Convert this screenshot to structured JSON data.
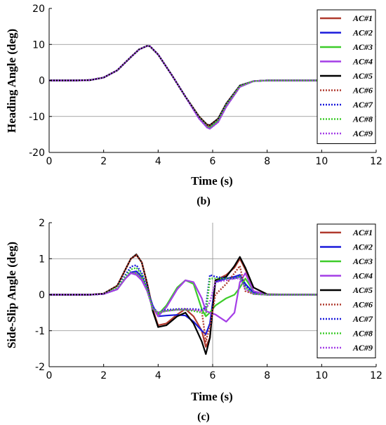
{
  "chart_data": [
    {
      "type": "line",
      "caption": "(b)",
      "xlabel": "Time (s)",
      "ylabel": "Heading Angle (deg)",
      "xlim": [
        0,
        12
      ],
      "ylim": [
        -20,
        20
      ],
      "xticks": [
        0,
        2,
        4,
        6,
        8,
        10,
        12
      ],
      "yticks": [
        -20,
        -10,
        0,
        10,
        20
      ],
      "grid_y_values": [
        -10,
        10
      ],
      "legend_placement": "top-right",
      "series": [
        {
          "name": "AC#1",
          "color": "#b03a2e",
          "dash": "solid",
          "x": [
            0,
            1,
            1.5,
            2,
            2.5,
            3,
            3.3,
            3.6,
            3.7,
            4,
            4.5,
            5,
            5.5,
            5.8,
            5.9,
            6.2,
            6.5,
            7,
            7.5,
            8,
            10
          ],
          "y": [
            0,
            0,
            0.1,
            0.8,
            2.8,
            6.5,
            8.6,
            9.6,
            9.5,
            7.2,
            1.5,
            -4.5,
            -10,
            -12.5,
            -12.6,
            -10.8,
            -6.5,
            -1.5,
            -0.2,
            0,
            0
          ]
        },
        {
          "name": "AC#2",
          "color": "#1a1adb",
          "dash": "solid",
          "x": [
            0,
            1,
            1.5,
            2,
            2.5,
            3,
            3.3,
            3.6,
            3.7,
            4,
            4.5,
            5,
            5.5,
            5.8,
            5.9,
            6.2,
            6.5,
            7,
            7.5,
            8,
            10
          ],
          "y": [
            0,
            0,
            0.1,
            0.8,
            2.8,
            6.5,
            8.6,
            9.6,
            9.5,
            7.2,
            1.5,
            -4.5,
            -10.3,
            -12.9,
            -13.0,
            -11.0,
            -6.7,
            -1.5,
            -0.2,
            0,
            0
          ]
        },
        {
          "name": "AC#3",
          "color": "#3dcc2a",
          "dash": "solid",
          "x": [
            0,
            1,
            1.5,
            2,
            2.5,
            3,
            3.3,
            3.6,
            3.7,
            4,
            4.5,
            5,
            5.5,
            5.8,
            5.9,
            6.2,
            6.5,
            7,
            7.5,
            8,
            10
          ],
          "y": [
            0,
            0,
            0.1,
            0.8,
            2.8,
            6.5,
            8.6,
            9.6,
            9.5,
            7.2,
            1.5,
            -4.5,
            -10.3,
            -12.9,
            -13.1,
            -11.1,
            -6.8,
            -1.6,
            -0.2,
            0,
            0
          ]
        },
        {
          "name": "AC#4",
          "color": "#a43ee6",
          "dash": "solid",
          "x": [
            0,
            1,
            1.5,
            2,
            2.5,
            3,
            3.3,
            3.6,
            3.7,
            4,
            4.5,
            5,
            5.5,
            5.8,
            5.9,
            6.2,
            6.5,
            7,
            7.5,
            8,
            10
          ],
          "y": [
            0,
            0,
            0.1,
            0.8,
            2.8,
            6.5,
            8.6,
            9.6,
            9.5,
            7.2,
            1.5,
            -4.5,
            -10.6,
            -13.1,
            -13.4,
            -11.6,
            -7.3,
            -1.8,
            -0.2,
            0,
            0
          ]
        },
        {
          "name": "AC#5",
          "color": "#000000",
          "dash": "solid",
          "x": [
            0,
            1,
            1.5,
            2,
            2.5,
            3,
            3.3,
            3.6,
            3.7,
            4,
            4.5,
            5,
            5.5,
            5.8,
            5.9,
            6.2,
            6.5,
            7,
            7.5,
            8,
            10
          ],
          "y": [
            0,
            0,
            0.1,
            0.8,
            2.8,
            6.5,
            8.6,
            9.6,
            9.5,
            7.2,
            1.5,
            -4.5,
            -10,
            -12.3,
            -12.4,
            -10.6,
            -6.4,
            -1.4,
            -0.2,
            0,
            0
          ]
        },
        {
          "name": "AC#6",
          "color": "#b03a2e",
          "dash": "dot",
          "x": [
            0,
            1,
            1.5,
            2,
            2.5,
            3,
            3.3,
            3.6,
            3.7,
            4,
            4.5,
            5,
            5.5,
            5.8,
            5.9,
            6.2,
            6.5,
            7,
            7.5,
            8,
            10
          ],
          "y": [
            0,
            0,
            0.1,
            0.8,
            2.8,
            6.5,
            8.6,
            9.6,
            9.5,
            7.2,
            1.5,
            -4.5,
            -10,
            -12.5,
            -12.6,
            -10.8,
            -6.5,
            -1.5,
            -0.2,
            0,
            0
          ]
        },
        {
          "name": "AC#7",
          "color": "#1a1adb",
          "dash": "dot",
          "x": [
            0,
            1,
            1.5,
            2,
            2.5,
            3,
            3.3,
            3.6,
            3.7,
            4,
            4.5,
            5,
            5.5,
            5.8,
            5.9,
            6.2,
            6.5,
            7,
            7.5,
            8,
            10
          ],
          "y": [
            0,
            0,
            0.1,
            0.8,
            2.8,
            6.5,
            8.6,
            9.6,
            9.5,
            7.2,
            1.5,
            -4.5,
            -10.3,
            -12.9,
            -13.0,
            -11.0,
            -6.7,
            -1.5,
            -0.2,
            0,
            0
          ]
        },
        {
          "name": "AC#8",
          "color": "#3dcc2a",
          "dash": "dot",
          "x": [
            0,
            1,
            1.5,
            2,
            2.5,
            3,
            3.3,
            3.6,
            3.7,
            4,
            4.5,
            5,
            5.5,
            5.8,
            5.9,
            6.2,
            6.5,
            7,
            7.5,
            8,
            10
          ],
          "y": [
            0,
            0,
            0.1,
            0.8,
            2.8,
            6.5,
            8.6,
            9.6,
            9.5,
            7.2,
            1.5,
            -4.5,
            -10.3,
            -12.9,
            -13.1,
            -11.1,
            -6.8,
            -1.6,
            -0.2,
            0,
            0
          ]
        },
        {
          "name": "AC#9",
          "color": "#a43ee6",
          "dash": "dot",
          "x": [
            0,
            1,
            1.5,
            2,
            2.5,
            3,
            3.3,
            3.6,
            3.7,
            4,
            4.5,
            5,
            5.5,
            5.8,
            5.9,
            6.2,
            6.5,
            7,
            7.5,
            8,
            10
          ],
          "y": [
            0,
            0,
            0.1,
            0.8,
            2.8,
            6.5,
            8.6,
            9.6,
            9.5,
            7.2,
            1.5,
            -4.5,
            -10.6,
            -13.1,
            -13.4,
            -11.6,
            -7.3,
            -1.8,
            -0.2,
            0,
            0
          ]
        }
      ]
    },
    {
      "type": "line",
      "caption": "(c)",
      "xlabel": "Time (s)",
      "ylabel": "Side-Slip Angle (deg)",
      "xlim": [
        0,
        12
      ],
      "ylim": [
        -2,
        2
      ],
      "xticks": [
        0,
        2,
        4,
        6,
        8,
        10,
        12
      ],
      "yticks": [
        -2,
        -1,
        0,
        1,
        2
      ],
      "grid_y_values": [
        -1,
        1
      ],
      "grid_x_values": [
        6
      ],
      "legend_placement": "top-right",
      "series": [
        {
          "name": "AC#1",
          "color": "#b03a2e",
          "dash": "solid",
          "x": [
            0,
            1.5,
            2,
            2.5,
            2.8,
            3.0,
            3.2,
            3.4,
            3.6,
            3.8,
            4.0,
            4.3,
            4.7,
            5.0,
            5.3,
            5.6,
            5.75,
            5.9,
            6.1,
            6.5,
            6.8,
            7.0,
            7.2,
            7.5,
            8,
            10
          ],
          "y": [
            0,
            0,
            0.03,
            0.25,
            0.7,
            1.0,
            1.1,
            0.9,
            0.3,
            -0.4,
            -0.85,
            -0.8,
            -0.55,
            -0.4,
            -0.6,
            -1.0,
            -1.45,
            -1.2,
            0.4,
            0.55,
            0.75,
            1.0,
            0.7,
            0.2,
            0.01,
            0
          ]
        },
        {
          "name": "AC#2",
          "color": "#1a1adb",
          "dash": "solid",
          "x": [
            0,
            1.5,
            2,
            2.5,
            2.8,
            3.0,
            3.2,
            3.4,
            3.6,
            3.8,
            4.0,
            4.3,
            4.7,
            5.0,
            5.3,
            5.6,
            5.75,
            5.9,
            6.1,
            6.5,
            6.8,
            7.0,
            7.2,
            7.5,
            8,
            10
          ],
          "y": [
            0,
            0,
            0.02,
            0.15,
            0.45,
            0.62,
            0.65,
            0.5,
            0.15,
            -0.3,
            -0.6,
            -0.58,
            -0.56,
            -0.58,
            -0.75,
            -1.0,
            -1.1,
            -0.8,
            0.35,
            0.45,
            0.5,
            0.55,
            0.3,
            0.05,
            0,
            0
          ]
        },
        {
          "name": "AC#3",
          "color": "#3dcc2a",
          "dash": "solid",
          "x": [
            0,
            1.5,
            2,
            2.5,
            2.8,
            3.0,
            3.2,
            3.4,
            3.6,
            3.8,
            4.0,
            4.3,
            4.7,
            5.0,
            5.3,
            5.6,
            5.75,
            5.9,
            6.1,
            6.5,
            6.8,
            7.0,
            7.2,
            7.5,
            8,
            10
          ],
          "y": [
            0,
            0,
            0.02,
            0.15,
            0.45,
            0.6,
            0.6,
            0.45,
            0.1,
            -0.35,
            -0.55,
            -0.3,
            0.2,
            0.4,
            0.3,
            -0.4,
            -0.6,
            -0.5,
            -0.3,
            -0.1,
            0.0,
            0.2,
            0.45,
            0.1,
            0,
            0
          ]
        },
        {
          "name": "AC#4",
          "color": "#a43ee6",
          "dash": "solid",
          "x": [
            0,
            1.5,
            2,
            2.5,
            2.8,
            3.0,
            3.2,
            3.4,
            3.6,
            3.8,
            4.0,
            4.3,
            4.7,
            5.0,
            5.3,
            5.6,
            5.75,
            5.9,
            6.1,
            6.5,
            6.8,
            7.0,
            7.2,
            7.5,
            8,
            10
          ],
          "y": [
            0,
            0,
            0.02,
            0.15,
            0.45,
            0.6,
            0.55,
            0.4,
            0.1,
            -0.35,
            -0.6,
            -0.35,
            0.15,
            0.4,
            0.35,
            -0.1,
            -0.45,
            -0.5,
            -0.55,
            -0.75,
            -0.5,
            0.35,
            0.6,
            0.1,
            0,
            0
          ]
        },
        {
          "name": "AC#5",
          "color": "#000000",
          "dash": "solid",
          "x": [
            0,
            1.5,
            2,
            2.5,
            2.8,
            3.0,
            3.2,
            3.4,
            3.6,
            3.8,
            4.0,
            4.3,
            4.7,
            5.0,
            5.3,
            5.6,
            5.75,
            5.9,
            6.1,
            6.5,
            6.8,
            7.0,
            7.2,
            7.5,
            8,
            10
          ],
          "y": [
            0,
            0,
            0.03,
            0.25,
            0.7,
            1.0,
            1.12,
            0.9,
            0.3,
            -0.45,
            -0.9,
            -0.85,
            -0.6,
            -0.5,
            -0.8,
            -1.3,
            -1.65,
            -1.2,
            0.4,
            0.5,
            0.8,
            1.05,
            0.75,
            0.2,
            0.01,
            0
          ]
        },
        {
          "name": "AC#6",
          "color": "#b03a2e",
          "dash": "dot",
          "x": [
            0,
            1.5,
            2,
            2.5,
            2.8,
            3.0,
            3.2,
            3.4,
            3.6,
            3.8,
            4.0,
            4.3,
            4.7,
            5.0,
            5.3,
            5.6,
            5.75,
            5.9,
            6.1,
            6.5,
            6.8,
            7.0,
            7.2,
            7.5,
            8,
            10
          ],
          "y": [
            0,
            0,
            0.03,
            0.25,
            0.7,
            1.0,
            1.1,
            0.9,
            0.3,
            -0.4,
            -0.5,
            -0.45,
            -0.4,
            -0.4,
            -0.42,
            -0.45,
            -1.3,
            -0.9,
            0.0,
            0.3,
            0.6,
            0.8,
            0.1,
            0.02,
            0,
            0
          ]
        },
        {
          "name": "AC#7",
          "color": "#1a1adb",
          "dash": "dot",
          "x": [
            0,
            1.5,
            2,
            2.5,
            2.8,
            3.0,
            3.2,
            3.4,
            3.6,
            3.8,
            4.0,
            4.3,
            4.7,
            5.0,
            5.3,
            5.6,
            5.75,
            5.9,
            6.1,
            6.5,
            6.8,
            7.0,
            7.2,
            7.5,
            8,
            10
          ],
          "y": [
            0,
            0,
            0.02,
            0.2,
            0.55,
            0.78,
            0.82,
            0.6,
            0.2,
            -0.35,
            -0.5,
            -0.42,
            -0.4,
            -0.4,
            -0.4,
            -0.42,
            -0.35,
            0.55,
            0.5,
            0.45,
            0.45,
            0.5,
            0.25,
            0.02,
            0,
            0
          ]
        },
        {
          "name": "AC#8",
          "color": "#3dcc2a",
          "dash": "dot",
          "x": [
            0,
            1.5,
            2,
            2.5,
            2.8,
            3.0,
            3.2,
            3.4,
            3.6,
            3.8,
            4.0,
            4.3,
            4.7,
            5.0,
            5.3,
            5.6,
            5.75,
            5.9,
            6.1,
            6.5,
            6.8,
            7.0,
            7.2,
            7.5,
            8,
            10
          ],
          "y": [
            0,
            0,
            0.02,
            0.2,
            0.5,
            0.7,
            0.75,
            0.55,
            0.15,
            -0.4,
            -0.5,
            -0.45,
            -0.42,
            -0.42,
            -0.45,
            -0.5,
            -0.55,
            0.45,
            0.45,
            0.45,
            0.45,
            0.5,
            0.2,
            0.02,
            0,
            0
          ]
        },
        {
          "name": "AC#9",
          "color": "#a43ee6",
          "dash": "dot",
          "x": [
            0,
            1.5,
            2,
            2.5,
            2.8,
            3.0,
            3.2,
            3.4,
            3.6,
            3.8,
            4.0,
            4.3,
            4.7,
            5.0,
            5.3,
            5.6,
            5.75,
            5.9,
            6.1,
            6.5,
            6.8,
            7.0,
            7.2,
            7.5,
            8,
            10
          ],
          "y": [
            0,
            0,
            0.02,
            0.15,
            0.45,
            0.6,
            0.6,
            0.45,
            0.1,
            -0.4,
            -0.5,
            -0.45,
            -0.42,
            -0.42,
            -0.42,
            -0.45,
            -0.4,
            -0.2,
            0.35,
            0.4,
            0.45,
            0.45,
            0.15,
            0.02,
            0,
            0
          ]
        }
      ]
    }
  ]
}
